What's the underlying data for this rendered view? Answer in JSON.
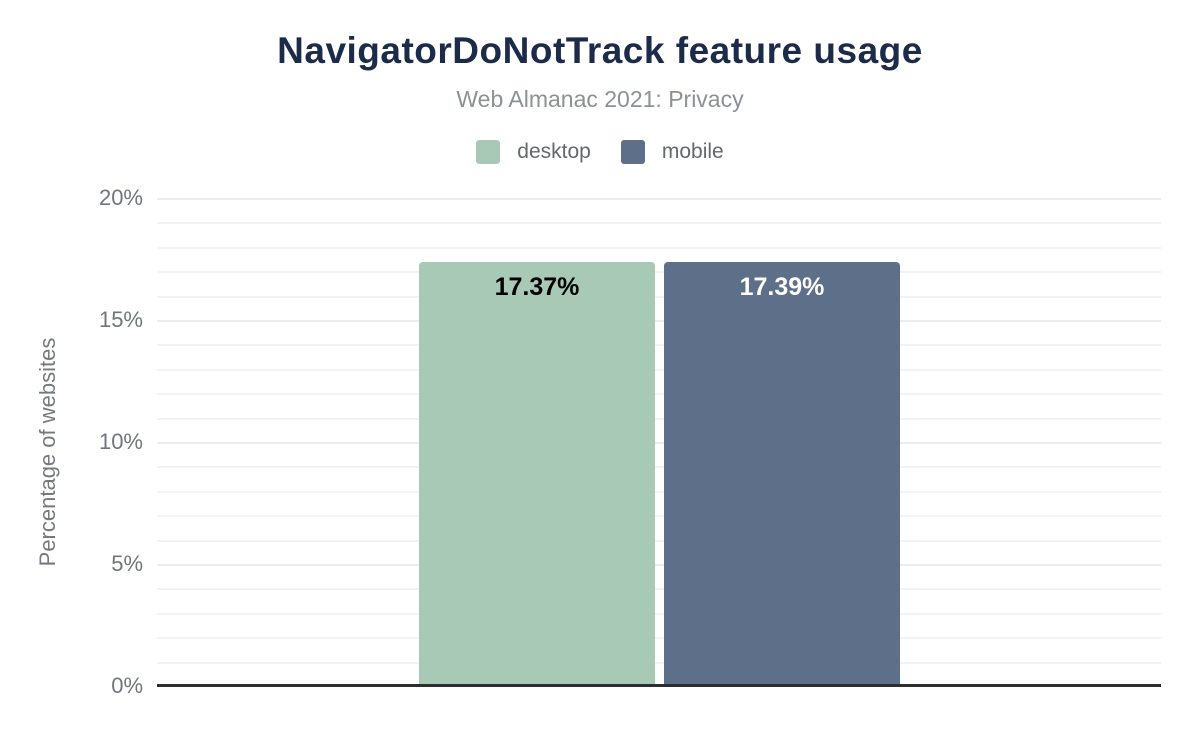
{
  "chart": {
    "title": "NavigatorDoNotTrack feature usage",
    "subtitle": "Web Almanac 2021: Privacy",
    "y_axis_label": "Percentage of websites"
  },
  "chart_data": {
    "type": "bar",
    "title": "NavigatorDoNotTrack feature usage",
    "subtitle": "Web Almanac 2021: Privacy",
    "categories": [
      "desktop",
      "mobile"
    ],
    "values": [
      17.37,
      17.39
    ],
    "series": [
      {
        "name": "desktop",
        "value": 17.37,
        "value_label": "17.37%",
        "color": "#a7c9b5",
        "label_color": "#000000"
      },
      {
        "name": "mobile",
        "value": 17.39,
        "value_label": "17.39%",
        "color": "#5e7089",
        "label_color": "#ffffff"
      }
    ],
    "xlabel": "",
    "ylabel": "Percentage of websites",
    "ylim": [
      0,
      20
    ],
    "yticks": [
      0,
      5,
      10,
      15,
      20
    ],
    "ytick_labels": [
      "0%",
      "5%",
      "10%",
      "15%",
      "20%"
    ],
    "gridline_step": 1,
    "major_gridline_step": 5,
    "grid": true,
    "legend_position": "top"
  },
  "colors": {
    "title": "#1b2b49",
    "subtitle": "#8c9196",
    "desktop_bar": "#a7c9b5",
    "mobile_bar": "#5e7089",
    "axis_line": "#2d2d2d",
    "gridline": "#f3f3f3",
    "tick_text": "#71767c"
  }
}
